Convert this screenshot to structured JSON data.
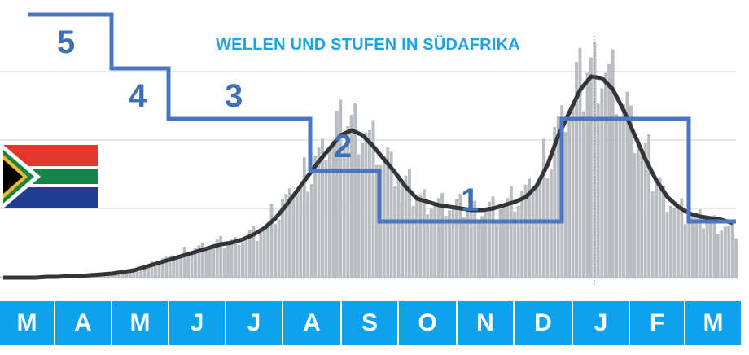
{
  "chart_data": {
    "type": "bar+line",
    "title": "WELLEN UND STUFEN IN SÜDAFRIKA",
    "months": [
      "M",
      "A",
      "M",
      "J",
      "J",
      "A",
      "S",
      "O",
      "N",
      "D",
      "J",
      "F",
      "M"
    ],
    "x_unit": "week index starting 2020-03",
    "series": [
      {
        "kind": "daily-cases-bars",
        "values": [
          1,
          1,
          1,
          1,
          2,
          2,
          3,
          3,
          4,
          5,
          6,
          8,
          10,
          14,
          18,
          24,
          28,
          34,
          38,
          42,
          44,
          46,
          50,
          56,
          64,
          78,
          94,
          110,
          130,
          150,
          170,
          186,
          194,
          186,
          170,
          150,
          132,
          114,
          100,
          96,
          92,
          90,
          88,
          86,
          86,
          88,
          92,
          96,
          104,
          120,
          150,
          186,
          210,
          240,
          262,
          262,
          246,
          214,
          180,
          150,
          120,
          100,
          86,
          78,
          72,
          70,
          66,
          60
        ]
      },
      {
        "kind": "7-day-average-line",
        "values": [
          1,
          1,
          1,
          1,
          2,
          2,
          3,
          3,
          4,
          5,
          6,
          8,
          10,
          14,
          18,
          22,
          26,
          30,
          34,
          38,
          42,
          44,
          48,
          54,
          62,
          74,
          90,
          108,
          126,
          144,
          160,
          176,
          182,
          176,
          162,
          146,
          130,
          112,
          98,
          94,
          90,
          88,
          86,
          84,
          84,
          86,
          90,
          94,
          100,
          114,
          140,
          176,
          204,
          232,
          248,
          246,
          232,
          206,
          176,
          146,
          120,
          100,
          88,
          80,
          76,
          74,
          72,
          68
        ]
      }
    ],
    "lockdown_levels": [
      {
        "level": "5"
      },
      {
        "level": "4"
      },
      {
        "level": "3"
      },
      {
        "level": "2"
      },
      {
        "level": "1"
      }
    ],
    "level_path_levels": [
      5,
      5,
      4,
      4,
      3,
      3,
      2,
      2,
      1,
      1,
      3,
      3,
      1,
      1
    ],
    "colors": {
      "bars": "#b9bcc0",
      "line": "#333539",
      "levels": "#4a76c2",
      "months_bg": "#0ea2ec",
      "title": "#1aa3e8"
    }
  }
}
